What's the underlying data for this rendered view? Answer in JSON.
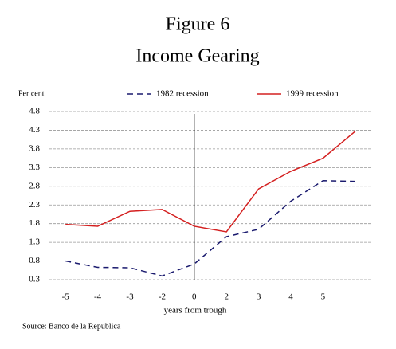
{
  "chart_data": {
    "type": "line",
    "title": "Figure 6",
    "subtitle": "Income Gearing",
    "ylabel": "Per cent",
    "xlabel": "years from trough",
    "source": "Source: Banco de la Republica",
    "categories": [
      "-5",
      "-4",
      "-3",
      "-2",
      "0",
      "2",
      "3",
      "4",
      "5",
      null
    ],
    "series": [
      {
        "name": "1982 recession",
        "color": "#1a1a6e",
        "dashed": true,
        "values": [
          0.8,
          0.63,
          0.62,
          0.4,
          0.72,
          1.45,
          1.65,
          2.4,
          2.95,
          2.93
        ]
      },
      {
        "name": "1999 recession",
        "color": "#d42020",
        "dashed": false,
        "values": [
          1.78,
          1.73,
          2.13,
          2.18,
          1.73,
          1.58,
          2.73,
          3.2,
          3.55,
          4.27
        ]
      }
    ],
    "ylim": [
      0.3,
      4.8
    ],
    "yticks": [
      0.3,
      0.8,
      1.3,
      1.8,
      2.3,
      2.8,
      3.3,
      3.8,
      4.3,
      4.8
    ],
    "grid": true
  }
}
